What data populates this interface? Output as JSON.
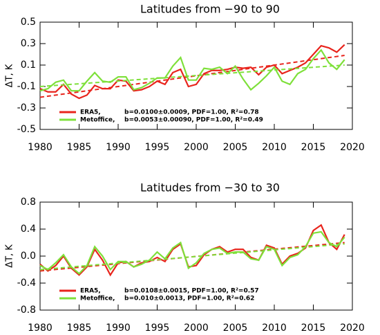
{
  "chart_data": [
    {
      "type": "line",
      "title": "Latitudes from −90 to 90",
      "y_label": "ΔT, K",
      "x": [
        1980,
        1981,
        1982,
        1983,
        1984,
        1985,
        1986,
        1987,
        1988,
        1989,
        1990,
        1991,
        1992,
        1993,
        1994,
        1995,
        1996,
        1997,
        1998,
        1999,
        2000,
        2001,
        2002,
        2003,
        2004,
        2005,
        2006,
        2007,
        2008,
        2009,
        2010,
        2011,
        2012,
        2013,
        2014,
        2015,
        2016,
        2017,
        2018,
        2019
      ],
      "xlim": [
        1980,
        2020
      ],
      "xticks": [
        1980,
        1985,
        1990,
        1995,
        2000,
        2005,
        2010,
        2015,
        2020
      ],
      "ylim": [
        -0.5,
        0.5
      ],
      "yticks": [
        0.5,
        0.3,
        0.1,
        -0.1,
        -0.3,
        -0.5
      ],
      "series": [
        {
          "name": "ERA5,",
          "note": "b=0.0100±0.0009, PDF=1.00, R²=0.78",
          "color": "#e8241c",
          "values": [
            -0.12,
            -0.15,
            -0.15,
            -0.08,
            -0.17,
            -0.21,
            -0.18,
            -0.09,
            -0.12,
            -0.12,
            -0.04,
            -0.05,
            -0.14,
            -0.13,
            -0.1,
            -0.05,
            -0.08,
            0.03,
            0.06,
            -0.1,
            -0.08,
            0.02,
            0.05,
            0.05,
            0.06,
            0.08,
            0.07,
            0.08,
            0.01,
            0.08,
            0.1,
            0.02,
            0.05,
            0.08,
            0.12,
            0.2,
            0.28,
            0.26,
            0.22,
            0.29
          ],
          "trend_x": [
            1980,
            2019
          ],
          "trend": [
            -0.2,
            0.19
          ]
        },
        {
          "name": "Metoffice,",
          "note": "b=0.0053±0.00090, PDF=1.00, R²=0.49",
          "color": "#7ee03a",
          "values": [
            -0.14,
            -0.12,
            -0.06,
            -0.04,
            -0.14,
            -0.14,
            -0.05,
            0.03,
            -0.05,
            -0.06,
            -0.01,
            -0.01,
            -0.13,
            -0.11,
            -0.07,
            -0.02,
            -0.02,
            0.09,
            0.17,
            -0.04,
            -0.04,
            0.07,
            0.06,
            0.08,
            0.02,
            0.09,
            -0.03,
            -0.13,
            -0.07,
            0.0,
            0.08,
            -0.05,
            -0.08,
            0.02,
            0.06,
            0.16,
            0.24,
            0.12,
            0.06,
            0.15
          ],
          "trend_x": [
            1980,
            2019
          ],
          "trend": [
            -0.1,
            0.1
          ]
        }
      ]
    },
    {
      "type": "line",
      "title": "Latitudes from −30 to 30",
      "y_label": "ΔT, K",
      "x": [
        1980,
        1981,
        1982,
        1983,
        1984,
        1985,
        1986,
        1987,
        1988,
        1989,
        1990,
        1991,
        1992,
        1993,
        1994,
        1995,
        1996,
        1997,
        1998,
        1999,
        2000,
        2001,
        2002,
        2003,
        2004,
        2005,
        2006,
        2007,
        2008,
        2009,
        2010,
        2011,
        2012,
        2013,
        2014,
        2015,
        2016,
        2017,
        2018,
        2019
      ],
      "xlim": [
        1980,
        2020
      ],
      "xticks": [
        1980,
        1985,
        1990,
        1995,
        2000,
        2005,
        2010,
        2015,
        2020
      ],
      "ylim": [
        -0.8,
        0.8
      ],
      "yticks": [
        0.8,
        0.4,
        {
          "value": 0,
          "label": "0.0"
        },
        -0.4,
        -0.8
      ],
      "series": [
        {
          "name": "ERA5,",
          "note": "b=0.0108±0.0015, PDF=1.00, R²=0.57",
          "color": "#e8241c",
          "values": [
            -0.12,
            -0.22,
            -0.14,
            0.0,
            -0.18,
            -0.28,
            -0.16,
            0.1,
            -0.06,
            -0.28,
            -0.1,
            -0.08,
            -0.16,
            -0.1,
            -0.08,
            -0.02,
            -0.08,
            0.1,
            0.18,
            -0.16,
            -0.14,
            0.02,
            0.1,
            0.14,
            0.06,
            0.1,
            0.1,
            -0.02,
            -0.06,
            0.16,
            0.12,
            -0.12,
            0.0,
            0.04,
            0.12,
            0.38,
            0.46,
            0.2,
            0.1,
            0.32
          ],
          "trend_x": [
            1980,
            2019
          ],
          "trend": [
            -0.22,
            0.2
          ]
        },
        {
          "name": "Metoffice,",
          "note": "b=0.010±0.0013, PDF=1.00, R²=0.62",
          "color": "#7ee03a",
          "values": [
            -0.14,
            -0.2,
            -0.1,
            0.02,
            -0.16,
            -0.26,
            -0.14,
            0.14,
            0.0,
            -0.2,
            -0.08,
            -0.08,
            -0.16,
            -0.12,
            -0.06,
            0.06,
            -0.04,
            0.12,
            0.2,
            -0.18,
            -0.1,
            0.04,
            0.1,
            0.12,
            0.04,
            0.06,
            0.06,
            -0.04,
            -0.06,
            0.14,
            0.1,
            -0.14,
            -0.02,
            0.02,
            0.14,
            0.34,
            0.36,
            0.2,
            0.14,
            0.28
          ],
          "trend_x": [
            1980,
            2019
          ],
          "trend": [
            -0.2,
            0.18
          ]
        }
      ]
    }
  ]
}
